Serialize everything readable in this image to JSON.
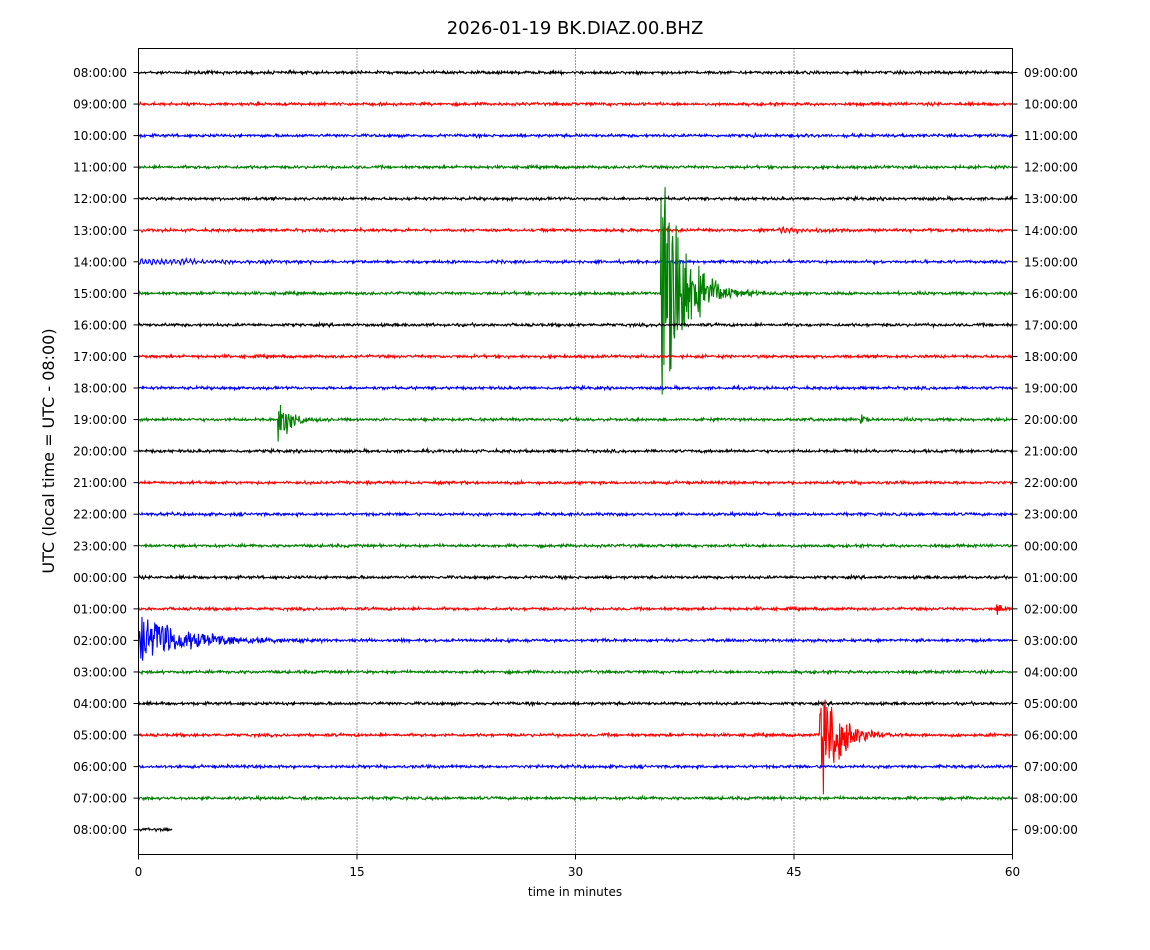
{
  "chart_data": {
    "type": "line",
    "title": "2026-01-19 BK.DIAZ.00.BHZ",
    "xlabel": "time in minutes",
    "ylabel": "UTC (local time = UTC - 08:00)",
    "xlim": [
      0,
      60
    ],
    "xticks": [
      "0",
      "15",
      "30",
      "45",
      "60"
    ],
    "grid": "vertical dotted lines at 15, 30, 45",
    "colors": [
      "#000000",
      "#ff0000",
      "#0000ff",
      "#008000"
    ],
    "left_labels": [
      "08:00:00",
      "09:00:00",
      "10:00:00",
      "11:00:00",
      "12:00:00",
      "13:00:00",
      "14:00:00",
      "15:00:00",
      "16:00:00",
      "17:00:00",
      "18:00:00",
      "19:00:00",
      "20:00:00",
      "21:00:00",
      "22:00:00",
      "23:00:00",
      "00:00:00",
      "01:00:00",
      "02:00:00",
      "03:00:00",
      "04:00:00",
      "05:00:00",
      "06:00:00",
      "07:00:00",
      "08:00:00"
    ],
    "right_labels": [
      "09:00:00",
      "10:00:00",
      "11:00:00",
      "12:00:00",
      "13:00:00",
      "14:00:00",
      "15:00:00",
      "16:00:00",
      "17:00:00",
      "18:00:00",
      "19:00:00",
      "20:00:00",
      "21:00:00",
      "22:00:00",
      "23:00:00",
      "00:00:00",
      "01:00:00",
      "02:00:00",
      "03:00:00",
      "04:00:00",
      "05:00:00",
      "06:00:00",
      "07:00:00",
      "08:00:00",
      "09:00:00"
    ],
    "last_trace_end_minute": 2.3,
    "events": [
      {
        "trace": 2,
        "minute": 42.2,
        "peak": 0.15,
        "decay_min": 0.2
      },
      {
        "trace": 5,
        "minute": 44.0,
        "peak": 0.12,
        "decay_min": 3.0,
        "kind": "wavetrain"
      },
      {
        "trace": 5,
        "minute": 15.3,
        "peak": 0.08,
        "decay_min": 0.1
      },
      {
        "trace": 6,
        "minute": 0.0,
        "peak": 0.12,
        "decay_min": 6.0,
        "kind": "wavetrain"
      },
      {
        "trace": 7,
        "minute": 35.9,
        "peak": 3.9,
        "peak_down": 4.5,
        "decay_min": 1.6
      },
      {
        "trace": 7,
        "minute": 52.2,
        "peak": 0.1,
        "decay_min": 0.1
      },
      {
        "trace": 11,
        "minute": 9.6,
        "peak": 1.0,
        "peak_down": 1.0,
        "decay_min": 0.9
      },
      {
        "trace": 11,
        "minute": 49.6,
        "peak": 0.18,
        "decay_min": 0.4
      },
      {
        "trace": 17,
        "minute": 58.9,
        "peak": 0.2,
        "decay_min": 0.6
      },
      {
        "trace": 18,
        "minute": 0.0,
        "peak": 0.75,
        "peak_down": 0.9,
        "decay_min": 3.5
      },
      {
        "trace": 21,
        "minute": 46.8,
        "peak": 2.6,
        "peak_down": 2.5,
        "decay_min": 1.2
      }
    ]
  }
}
